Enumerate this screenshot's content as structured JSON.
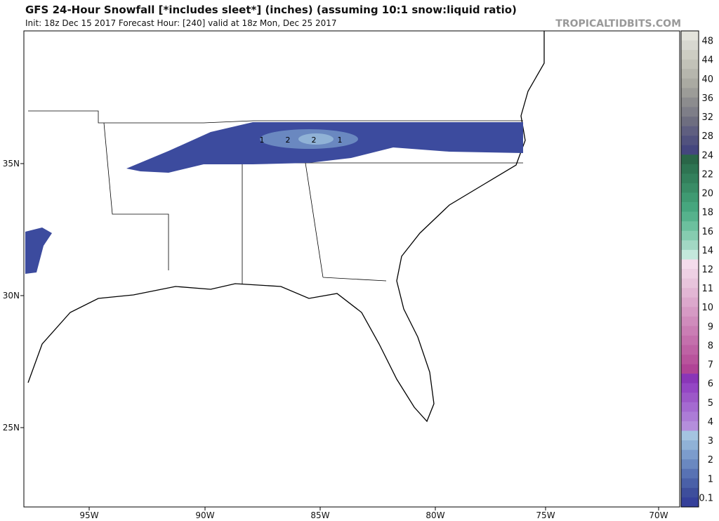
{
  "header": {
    "title": "GFS 24-Hour Snowfall [*includes sleet*] (inches) (assuming 10:1 snow:liquid ratio)",
    "subtitle": "Init: 18z Dec 15 2017   Forecast Hour: [240]   valid at 18z Mon, Dec 25 2017",
    "site": "TROPICALTIDBITS.COM"
  },
  "lon_labels": [
    "95W",
    "90W",
    "85W",
    "80W",
    "75W",
    "70W"
  ],
  "lat_labels": [
    "35N",
    "30N",
    "25N"
  ],
  "contour_labels": [
    "1",
    "2",
    "2",
    "1"
  ],
  "colorbar": [
    {
      "label": "48",
      "colors": [
        "#e4e4dc",
        "#d8d8d0"
      ]
    },
    {
      "label": "44",
      "colors": [
        "#cdcdc3",
        "#c2c2b8"
      ]
    },
    {
      "label": "40",
      "colors": [
        "#b6b6ad",
        "#aaaaa2"
      ]
    },
    {
      "label": "36",
      "colors": [
        "#9c9c98",
        "#8c8c8e"
      ]
    },
    {
      "label": "32",
      "colors": [
        "#7e7e88",
        "#6e6e80"
      ]
    },
    {
      "label": "28",
      "colors": [
        "#5f5f80",
        "#51527e"
      ]
    },
    {
      "label": "24",
      "colors": [
        "#44467e",
        "#2a6648"
      ]
    },
    {
      "label": "22",
      "colors": [
        "#2e7452",
        "#33805c"
      ]
    },
    {
      "label": "20",
      "colors": [
        "#398c66",
        "#3f9a72"
      ]
    },
    {
      "label": "18",
      "colors": [
        "#46a67e",
        "#56b28c"
      ]
    },
    {
      "label": "16",
      "colors": [
        "#6cc09e",
        "#86ccb0"
      ]
    },
    {
      "label": "14",
      "colors": [
        "#a2d8c4",
        "#c4e8dc"
      ]
    },
    {
      "label": "12",
      "colors": [
        "#f4dcec",
        "#eed0e4"
      ]
    },
    {
      "label": "11",
      "colors": [
        "#e8c4dc",
        "#e2b6d4"
      ]
    },
    {
      "label": "10",
      "colors": [
        "#dca8cc",
        "#d69ac4"
      ]
    },
    {
      "label": "9",
      "colors": [
        "#d08cbc",
        "#ca7eb4"
      ]
    },
    {
      "label": "8",
      "colors": [
        "#c470ac",
        "#be62a4"
      ]
    },
    {
      "label": "7",
      "colors": [
        "#b8549c",
        "#b04496"
      ]
    },
    {
      "label": "6",
      "colors": [
        "#8a36b8",
        "#9446c4"
      ]
    },
    {
      "label": "5",
      "colors": [
        "#9c58c8",
        "#a46ad0"
      ]
    },
    {
      "label": "4",
      "colors": [
        "#ac7cd6",
        "#b48edc"
      ]
    },
    {
      "label": "3",
      "colors": [
        "#a4c4e0",
        "#90b2d6"
      ]
    },
    {
      "label": "2",
      "colors": [
        "#7c9ccc",
        "#6a88c0"
      ]
    },
    {
      "label": "1",
      "colors": [
        "#5872b4",
        "#4a60a8"
      ]
    },
    {
      "label": "0.1",
      "colors": [
        "#3e4e9c",
        "#35409a"
      ]
    }
  ]
}
